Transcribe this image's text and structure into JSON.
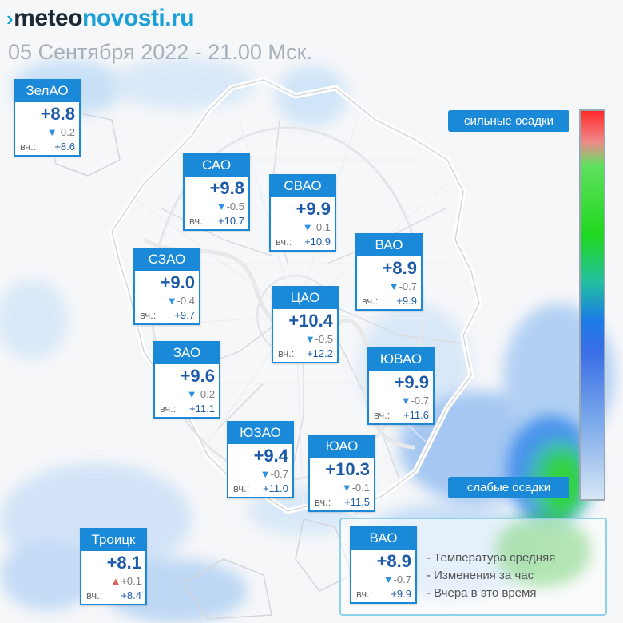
{
  "site": {
    "prefix": "›",
    "name_dark": "meteo",
    "name_accent": "novosti.ru"
  },
  "date_text": "05 Сентября 2022 - 21.00 Мск.",
  "colors": {
    "accent": "#1a8ad8",
    "temp_text": "#1d5aa8",
    "drop_arrow": "#2f8fe0",
    "rise_arrow": "#e0605e",
    "date_gray": "#a7b0b8"
  },
  "districts": [
    {
      "name": "ЗелАО",
      "temp": "+8.8",
      "trend": "down",
      "change": "-0.2",
      "yesterday_label": "вч.:",
      "yesterday": "+8.6"
    },
    {
      "name": "САО",
      "temp": "+9.8",
      "trend": "down",
      "change": "-0.5",
      "yesterday_label": "вч.:",
      "yesterday": "+10.7"
    },
    {
      "name": "СВАО",
      "temp": "+9.9",
      "trend": "down",
      "change": "-0.1",
      "yesterday_label": "вч.:",
      "yesterday": "+10.9"
    },
    {
      "name": "ВАО",
      "temp": "+8.9",
      "trend": "down",
      "change": "-0.7",
      "yesterday_label": "вч.:",
      "yesterday": "+9.9"
    },
    {
      "name": "СЗАО",
      "temp": "+9.0",
      "trend": "down",
      "change": "-0.4",
      "yesterday_label": "вч.:",
      "yesterday": "+9.7"
    },
    {
      "name": "ЦАО",
      "temp": "+10.4",
      "trend": "down",
      "change": "-0.5",
      "yesterday_label": "вч.:",
      "yesterday": "+12.2"
    },
    {
      "name": "ЗАО",
      "temp": "+9.6",
      "trend": "down",
      "change": "-0.2",
      "yesterday_label": "вч.:",
      "yesterday": "+11.1"
    },
    {
      "name": "ЮВАО",
      "temp": "+9.9",
      "trend": "down",
      "change": "-0.7",
      "yesterday_label": "вч.:",
      "yesterday": "+11.6"
    },
    {
      "name": "ЮЗАО",
      "temp": "+9.4",
      "trend": "down",
      "change": "-0.7",
      "yesterday_label": "вч.:",
      "yesterday": "+11.0"
    },
    {
      "name": "ЮАО",
      "temp": "+10.3",
      "trend": "down",
      "change": "-0.1",
      "yesterday_label": "вч.:",
      "yesterday": "+11.5"
    },
    {
      "name": "Троицк",
      "temp": "+8.1",
      "trend": "up",
      "change": "+0.1",
      "yesterday_label": "вч.:",
      "yesterday": "+8.4"
    }
  ],
  "precip_scale": {
    "top_label": "сильные осадки",
    "bottom_label": "слабые осадки"
  },
  "legend": {
    "sample": {
      "name": "ВАО",
      "temp": "+8.9",
      "trend": "down",
      "change": "-0.7",
      "yesterday_label": "вч.:",
      "yesterday": "+9.9"
    },
    "items": [
      "- Температура средняя",
      "- Изменения за час",
      "- Вчера в это время"
    ]
  }
}
